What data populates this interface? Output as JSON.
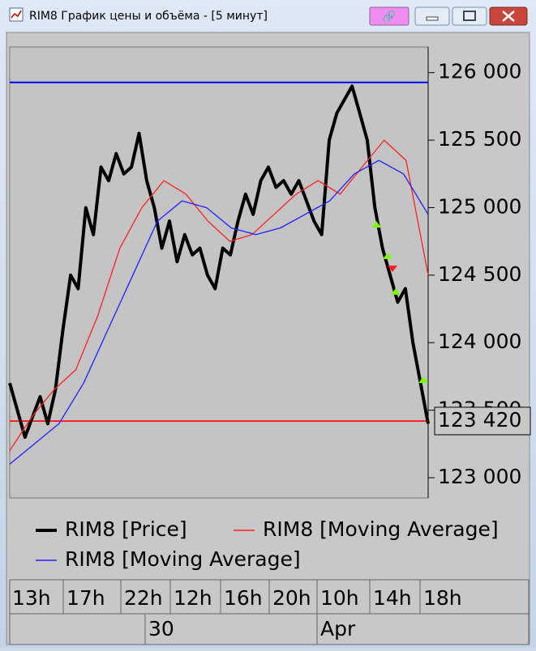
{
  "window": {
    "title": "RIM8 График цены и объёма - [5 минут]"
  },
  "chart_data": {
    "type": "line",
    "ylim": [
      122850,
      126190
    ],
    "yticks": [
      {
        "value": 126000,
        "label": "126 000"
      },
      {
        "value": 125500,
        "label": "125 500"
      },
      {
        "value": 125000,
        "label": "125 000"
      },
      {
        "value": 124500,
        "label": "124 500"
      },
      {
        "value": 124000,
        "label": "124 000"
      },
      {
        "value": 123500,
        "label": "123 500"
      },
      {
        "value": 123000,
        "label": "123 000"
      }
    ],
    "levels": [
      {
        "value": 125928,
        "color": "#0000ff"
      },
      {
        "value": 123420,
        "color": "#ff2020",
        "label": "123 420"
      }
    ],
    "series": [
      {
        "name": "RIM8 [Price]",
        "color": "#000000",
        "values": [
          123700,
          123500,
          123300,
          123450,
          123600,
          123400,
          123650,
          124100,
          124500,
          124400,
          125000,
          124800,
          125300,
          125200,
          125400,
          125250,
          125300,
          125550,
          125200,
          125000,
          124700,
          124900,
          124600,
          124800,
          124650,
          124700,
          124500,
          124400,
          124700,
          124650,
          124900,
          125100,
          124950,
          125200,
          125300,
          125150,
          125200,
          125100,
          125200,
          125050,
          124900,
          124800,
          125500,
          125700,
          125800,
          125900,
          125700,
          125500,
          125000,
          124700,
          124500,
          124300,
          124400,
          124000,
          123700,
          123400
        ]
      },
      {
        "name": "RIM8 [Moving Average]",
        "color": "#ff2020",
        "values": [
          123200,
          123450,
          123650,
          123800,
          124200,
          124700,
          125000,
          125200,
          125100,
          124900,
          124750,
          124800,
          124950,
          125100,
          125200,
          125100,
          125300,
          125500,
          125350,
          124500
        ]
      },
      {
        "name": "RIM8 [Moving Average]",
        "color": "#2020ff",
        "values": [
          123100,
          123250,
          123400,
          123700,
          124100,
          124500,
          124900,
          125050,
          125000,
          124850,
          124800,
          124850,
          124950,
          125050,
          125250,
          125350,
          125250,
          124950
        ]
      }
    ]
  },
  "time_axis": {
    "hours": [
      "13h",
      "17h",
      "22h",
      "12h",
      "16h",
      "20h",
      "10h",
      "14h",
      "18h"
    ],
    "dates": [
      "30",
      "Apr"
    ]
  }
}
